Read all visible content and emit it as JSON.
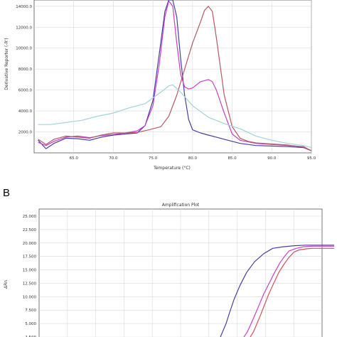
{
  "panel_b_label": "B",
  "chart_data": [
    {
      "id": "melt",
      "type": "line",
      "title": "",
      "xlabel": "Temperature (°C)",
      "ylabel": "Derivative Reporter (-R')",
      "xlim": [
        60.0,
        95.0
      ],
      "ylim": [
        0,
        14600
      ],
      "xticks": [
        65.0,
        70.0,
        75.0,
        80.0,
        85.0,
        90.0,
        95.0
      ],
      "xtick_labels": [
        "65.0",
        "70.0",
        "75.0",
        "80.0",
        "85.0",
        "90.0",
        "95.0"
      ],
      "yticks": [
        2000,
        4000,
        6000,
        8000,
        10000,
        12000,
        14000
      ],
      "ytick_labels": [
        "2000.0",
        "4000.0",
        "6000.0",
        "8000.0",
        "10000.0",
        "12000.0",
        "14000.0"
      ],
      "grid": true,
      "series": [
        {
          "color": "#4a3f9e",
          "x": [
            60.5,
            61.5,
            62.5,
            64.0,
            65.5,
            67.0,
            68.5,
            70.0,
            71.5,
            73.0,
            74.0,
            75.0,
            75.8,
            76.5,
            77.0,
            77.5,
            78.0,
            78.5,
            79.0,
            79.5,
            80.0,
            81.0,
            82.0,
            83.0,
            84.0,
            86.0,
            88.0,
            90.0,
            92.0,
            94.0,
            95.0
          ],
          "y": [
            1200,
            400,
            900,
            1400,
            1350,
            1200,
            1500,
            1700,
            1800,
            1900,
            2600,
            5000,
            9500,
            13500,
            14600,
            14600,
            13000,
            9000,
            5500,
            3200,
            2200,
            1900,
            1700,
            1500,
            1300,
            900,
            700,
            650,
            600,
            500,
            200
          ]
        },
        {
          "color": "#c83fc8",
          "x": [
            60.5,
            61.5,
            62.5,
            64.0,
            65.5,
            67.0,
            68.5,
            70.0,
            71.5,
            73.0,
            74.0,
            75.0,
            75.8,
            76.5,
            77.0,
            77.5,
            78.0,
            78.5,
            79.0,
            79.5,
            80.0,
            81.0,
            82.0,
            82.5,
            83.0,
            84.0,
            85.0,
            86.0,
            88.0,
            90.0,
            92.0,
            94.0,
            95.0
          ],
          "y": [
            1000,
            700,
            1100,
            1500,
            1600,
            1450,
            1650,
            1750,
            1900,
            2100,
            2600,
            4500,
            8500,
            13000,
            14500,
            14000,
            10500,
            7500,
            6300,
            6100,
            6200,
            6800,
            7000,
            6800,
            6000,
            3800,
            1800,
            1200,
            900,
            800,
            700,
            600,
            200
          ]
        },
        {
          "color": "#b25a66",
          "x": [
            60.5,
            61.5,
            62.5,
            64.0,
            65.5,
            67.0,
            68.5,
            70.0,
            71.5,
            73.0,
            74.5,
            76.0,
            77.0,
            78.0,
            79.0,
            80.0,
            81.0,
            81.5,
            82.0,
            82.5,
            83.0,
            84.0,
            85.0,
            86.0,
            87.0,
            88.0,
            90.0,
            92.0,
            94.0,
            95.0
          ],
          "y": [
            1300,
            800,
            1300,
            1600,
            1500,
            1400,
            1700,
            1900,
            1900,
            1950,
            2200,
            2500,
            3500,
            5500,
            8000,
            10500,
            12500,
            13600,
            14000,
            13500,
            11000,
            5500,
            2500,
            1400,
            1100,
            950,
            850,
            750,
            550,
            200
          ]
        },
        {
          "color": "#9fd4d8",
          "x": [
            60.5,
            62.0,
            64.0,
            66.0,
            68.0,
            70.0,
            72.0,
            74.0,
            76.0,
            77.0,
            77.5,
            78.5,
            80.0,
            82.0,
            84.0,
            86.0,
            88.0,
            90.0,
            92.0,
            94.0,
            95.0
          ],
          "y": [
            2700,
            2700,
            2900,
            3100,
            3500,
            3800,
            4300,
            4700,
            5800,
            6400,
            6500,
            5800,
            4500,
            3400,
            2800,
            2300,
            1600,
            1200,
            900,
            700,
            500
          ]
        }
      ]
    },
    {
      "id": "amp",
      "type": "line",
      "title": "Amplification Plot",
      "xlabel": "",
      "ylabel": "ΔRn",
      "ylim": [
        2.5,
        25.0
      ],
      "yticks": [
        2.5,
        5.0,
        7.5,
        10.0,
        12.5,
        15.0,
        17.5,
        20.0,
        22.5,
        25.0
      ],
      "ytick_labels": [
        "2.500",
        "5.000",
        "7.500",
        "10.000",
        "12.500",
        "15.000",
        "17.500",
        "20.000",
        "22.500",
        "25.000"
      ],
      "grid": true,
      "series": [
        {
          "color": "#4a3f9e",
          "x": [
            0.0,
            0.02,
            0.05,
            0.08,
            0.12,
            0.17,
            0.23,
            0.3,
            0.38,
            0.46,
            0.55,
            0.65,
            0.75,
            0.85,
            1.0
          ],
          "y": [
            2.5,
            3.5,
            5.0,
            7.0,
            9.5,
            12.0,
            14.5,
            16.5,
            18.0,
            19.0,
            19.3,
            19.5,
            19.6,
            19.6,
            19.6
          ]
        },
        {
          "color": "#c83fc8",
          "x": [
            0.0,
            0.04,
            0.08,
            0.12,
            0.17,
            0.22,
            0.28,
            0.34,
            0.4,
            0.45,
            0.5,
            0.58,
            0.66,
            0.74,
            0.82,
            0.9,
            1.0
          ],
          "y": [
            2.5,
            3.5,
            5.0,
            6.5,
            8.5,
            10.5,
            12.5,
            14.5,
            16.3,
            17.5,
            18.5,
            19.0,
            19.3,
            19.4,
            19.4,
            19.4,
            19.4
          ]
        },
        {
          "color": "#d05060",
          "x": [
            0.0,
            0.04,
            0.08,
            0.12,
            0.17,
            0.22,
            0.28,
            0.34,
            0.4,
            0.46,
            0.52,
            0.58,
            0.66,
            0.74,
            0.82,
            0.9,
            1.0
          ],
          "y": [
            2.5,
            3.5,
            5.0,
            6.5,
            8.5,
            10.5,
            12.5,
            14.5,
            16.0,
            17.3,
            18.3,
            18.7,
            18.9,
            19.0,
            19.0,
            19.0,
            19.0
          ]
        }
      ]
    }
  ]
}
